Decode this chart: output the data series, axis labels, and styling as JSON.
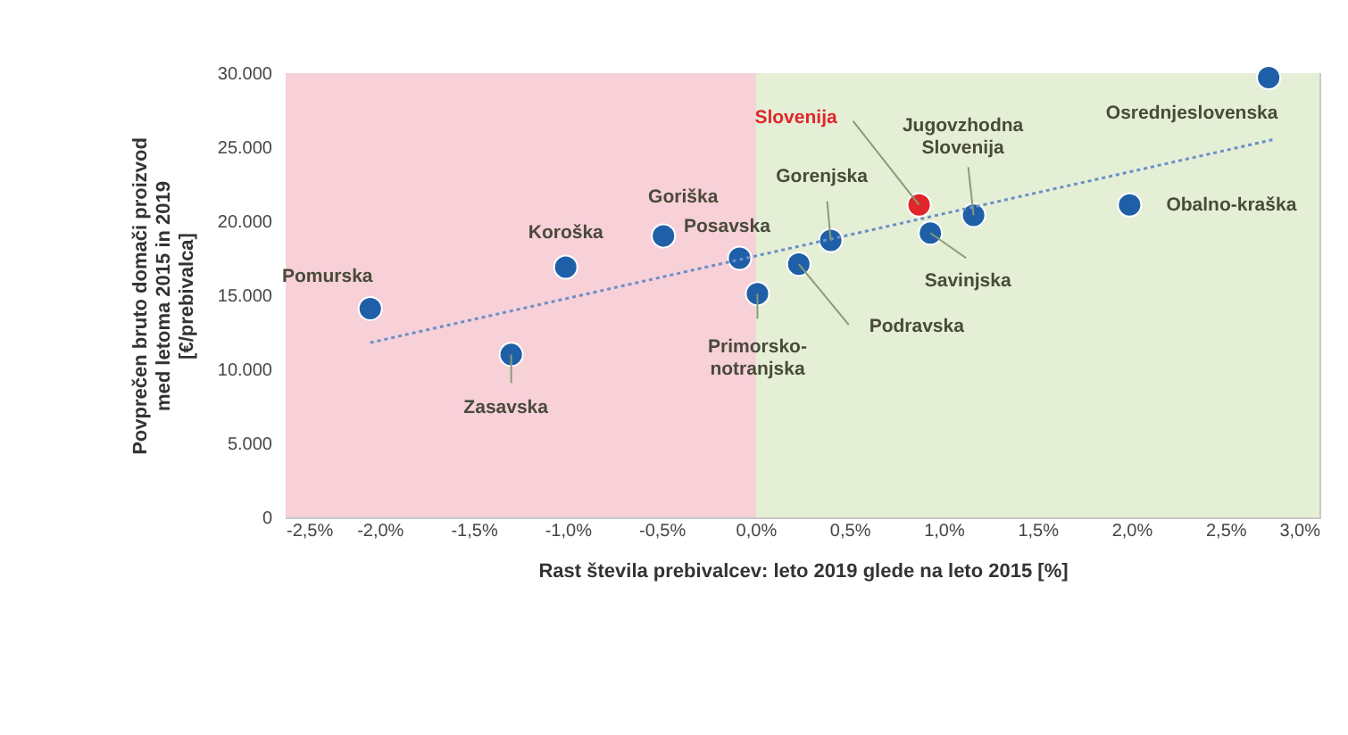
{
  "chart_data": {
    "type": "scatter",
    "xlabel": "Rast števila prebivalcev: leto 2019 glede na leto 2015 [%]",
    "ylabel": "Povprečen bruto domači proizvod\nmed letoma 2015 in 2019\n[€/prebivalca]",
    "xlim": [
      -2.5,
      3.0
    ],
    "xticks": [
      {
        "value": -2.5,
        "label": "-2,5%"
      },
      {
        "value": -2.0,
        "label": "-2,0%"
      },
      {
        "value": -1.5,
        "label": "-1,5%"
      },
      {
        "value": -1.0,
        "label": "-1,0%"
      },
      {
        "value": -0.5,
        "label": "-0,5%"
      },
      {
        "value": 0.0,
        "label": "0,0%"
      },
      {
        "value": 0.5,
        "label": "0,5%"
      },
      {
        "value": 1.0,
        "label": "1,0%"
      },
      {
        "value": 1.5,
        "label": "1,5%"
      },
      {
        "value": 2.0,
        "label": "2,0%"
      },
      {
        "value": 2.5,
        "label": "2,5%"
      },
      {
        "value": 3.0,
        "label": "3,0%"
      }
    ],
    "ylim": [
      0,
      30000
    ],
    "yticks": [
      0,
      {
        "value": 5000,
        "label": "5.000"
      },
      {
        "value": 10000,
        "label": "10.000"
      },
      {
        "value": 15000,
        "label": "15.000"
      },
      {
        "value": 20000,
        "label": "20.000"
      },
      {
        "value": 25000,
        "label": "25.000"
      },
      {
        "value": 30000,
        "label": "30.000"
      }
    ],
    "grid": true,
    "legend": false,
    "bands": [
      {
        "axis": "x",
        "from": -2.5,
        "to": 0.0,
        "color": "#f7d0d8"
      },
      {
        "axis": "x",
        "from": 0.0,
        "to": 3.0,
        "color": "#e4efd6"
      }
    ],
    "series": [
      {
        "marker": "circle",
        "x": [
          -2.05,
          -1.3,
          -1.01,
          -0.49,
          -0.085,
          0.01,
          0.23,
          0.4,
          0.87,
          0.93,
          1.16,
          1.99,
          2.73
        ],
        "values": [
          14100,
          11000,
          16900,
          19000,
          17500,
          15100,
          17100,
          18700,
          21100,
          19200,
          20400,
          21100,
          29700
        ],
        "colors": [
          "#1f5fa8",
          "#1f5fa8",
          "#1f5fa8",
          "#1f5fa8",
          "#1f5fa8",
          "#1f5fa8",
          "#1f5fa8",
          "#1f5fa8",
          "#e0262b",
          "#1f5fa8",
          "#1f5fa8",
          "#1f5fa8",
          "#1f5fa8"
        ]
      },
      {
        "type": "line",
        "x": [
          -2.05,
          2.75
        ],
        "values": [
          11800,
          25500
        ],
        "color": "#6a8fc8",
        "line_style": "dotted"
      }
    ],
    "annotations": [
      {
        "text": "Pomurska",
        "x": -2.05,
        "y": 14100
      },
      {
        "text": "Zasavska",
        "x": -1.3,
        "y": 11000
      },
      {
        "text": "Koroška",
        "x": -1.01,
        "y": 16900
      },
      {
        "text": "Goriška",
        "x": -0.49,
        "y": 19000
      },
      {
        "text": "Posavska",
        "x": -0.085,
        "y": 17500
      },
      {
        "text": "Primorsko-\nnotranjska",
        "x": 0.01,
        "y": 15100
      },
      {
        "text": "Podravska",
        "x": 0.23,
        "y": 17100
      },
      {
        "text": "Gorenjska",
        "x": 0.4,
        "y": 18700
      },
      {
        "text": "Slovenija",
        "x": 0.87,
        "y": 21100
      },
      {
        "text": "Savinjska",
        "x": 0.93,
        "y": 19200
      },
      {
        "text": "Jugovzhodna\nSlovenija",
        "x": 1.16,
        "y": 20400
      },
      {
        "text": "Obalno-kraška",
        "x": 1.99,
        "y": 21100
      },
      {
        "text": "Osrednjeslovenska",
        "x": 2.73,
        "y": 29700
      }
    ]
  }
}
